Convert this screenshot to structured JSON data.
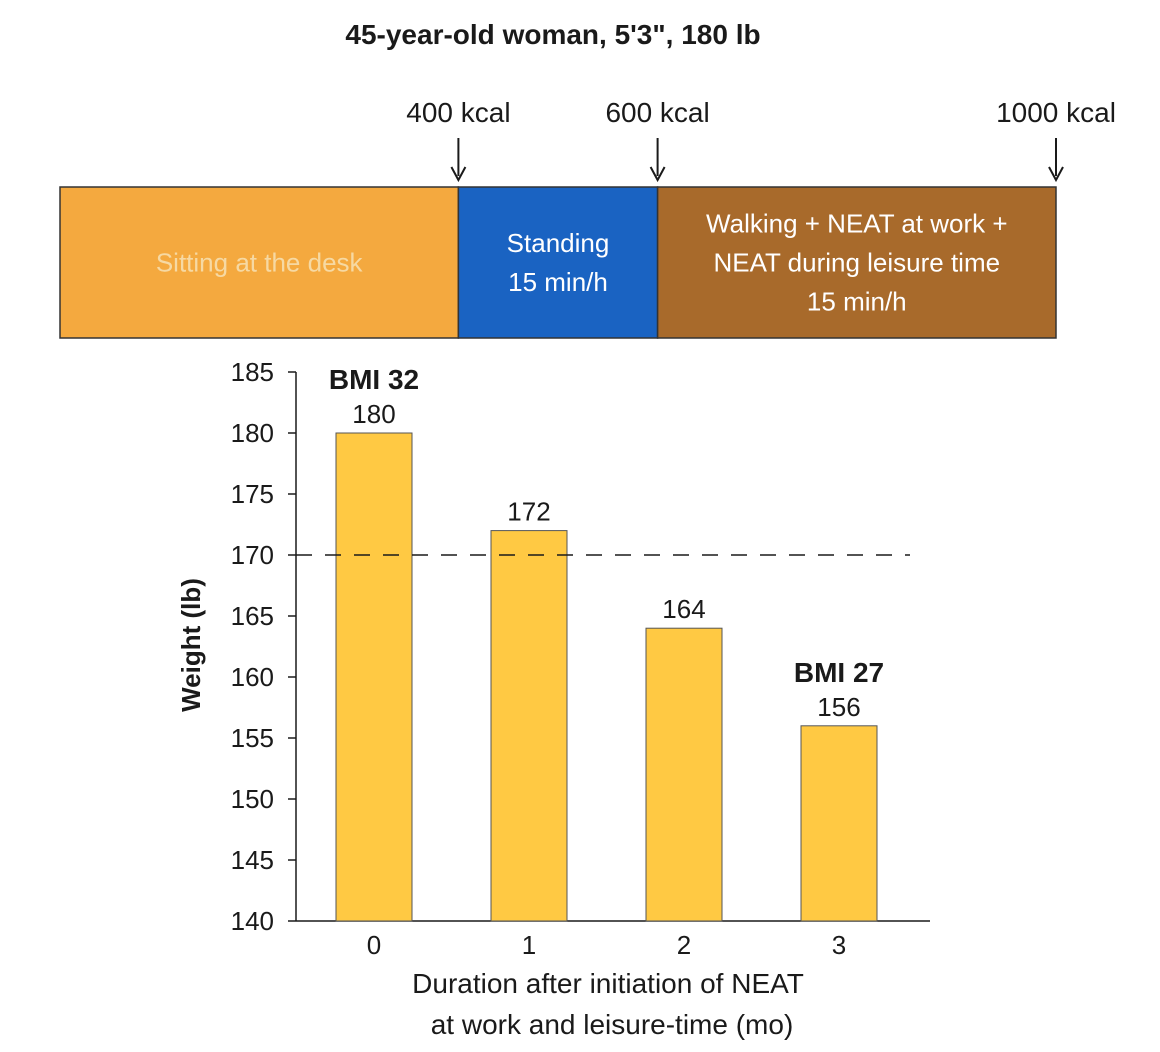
{
  "chart_data": {
    "type": "bar",
    "title": "45-year-old woman, 5'3\", 180 lb",
    "timeline": {
      "markers": [
        {
          "label": "400 kcal",
          "kcal": 400
        },
        {
          "label": "600 kcal",
          "kcal": 600
        },
        {
          "label": "1000 kcal",
          "kcal": 1000
        }
      ],
      "segments": [
        {
          "lines": [
            "Sitting at the desk"
          ],
          "color": "#F4A93F",
          "text_color": "#f6d9a3",
          "kcal_end": 400
        },
        {
          "lines": [
            "Standing",
            "15 min/h"
          ],
          "color": "#1A63C2",
          "text_color": "#ffffff",
          "kcal_end": 600
        },
        {
          "lines": [
            "Walking + NEAT at work +",
            "NEAT during leisure time",
            "15 min/h"
          ],
          "color": "#A86A2B",
          "text_color": "#ffffff",
          "kcal_end": 1000
        }
      ]
    },
    "categories": [
      "0",
      "1",
      "2",
      "3"
    ],
    "values": [
      180,
      172,
      164,
      156
    ],
    "value_labels": [
      "180",
      "172",
      "164",
      "156"
    ],
    "bmi_annotations": [
      {
        "index": 0,
        "text": "BMI 32"
      },
      {
        "index": 3,
        "text": "BMI 27"
      }
    ],
    "reference_line": 170,
    "ylim": [
      140,
      185
    ],
    "yticks": [
      140,
      145,
      150,
      155,
      160,
      165,
      170,
      175,
      180,
      185
    ],
    "ylabel": "Weight (lb)",
    "xlabel": [
      "Duration after initiation of NEAT",
      "at work and leisure-time (mo)"
    ],
    "bar_color": "#FFC943",
    "grid": false
  }
}
